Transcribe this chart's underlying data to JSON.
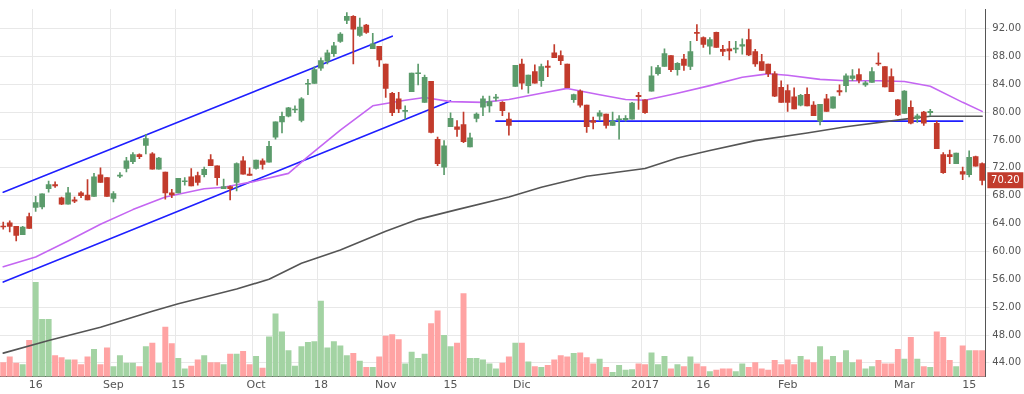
{
  "chart_data": {
    "type": "candlestick",
    "grid": true,
    "legend": false,
    "marker": "none",
    "line_style": "solid",
    "categories": [
      null,
      null,
      null,
      null,
      null,
      "16",
      null,
      null,
      null,
      null,
      null,
      null,
      null,
      null,
      null,
      null,
      null,
      "Sep",
      null,
      null,
      null,
      null,
      null,
      null,
      null,
      null,
      null,
      "15",
      null,
      null,
      null,
      null,
      null,
      null,
      null,
      null,
      null,
      null,
      null,
      "Oct",
      null,
      null,
      null,
      null,
      null,
      null,
      null,
      null,
      null,
      "18",
      null,
      null,
      null,
      null,
      null,
      null,
      null,
      null,
      null,
      "Nov",
      null,
      null,
      null,
      null,
      null,
      null,
      null,
      null,
      null,
      "15",
      null,
      null,
      null,
      null,
      null,
      null,
      null,
      null,
      null,
      null,
      "Dic",
      null,
      null,
      null,
      null,
      null,
      null,
      null,
      null,
      null,
      null,
      null,
      null,
      null,
      null,
      null,
      null,
      null,
      null,
      "2017",
      null,
      null,
      null,
      null,
      null,
      null,
      null,
      null,
      "16",
      null,
      null,
      null,
      null,
      null,
      null,
      null,
      null,
      null,
      null,
      null,
      null,
      "Feb",
      null,
      null,
      null,
      null,
      null,
      null,
      null,
      null,
      null,
      null,
      null,
      null,
      null,
      null,
      null,
      null,
      null,
      "Mar",
      null,
      null,
      null,
      null,
      null,
      null,
      null,
      null,
      null,
      "15",
      null,
      null
    ],
    "ylim": [
      42,
      94.8
    ],
    "yticks": [
      {
        "value": 44,
        "label": "44.00"
      },
      {
        "value": 48,
        "label": "48.00"
      },
      {
        "value": 52,
        "label": "52.00"
      },
      {
        "value": 56,
        "label": "56.00"
      },
      {
        "value": 60,
        "label": "60.00"
      },
      {
        "value": 64,
        "label": "64.00"
      },
      {
        "value": 68,
        "label": "68.00"
      },
      {
        "value": 72,
        "label": "72.00"
      },
      {
        "value": 76,
        "label": "76.00"
      },
      {
        "value": 80,
        "label": "80.00"
      },
      {
        "value": 84,
        "label": "84.00"
      },
      {
        "value": 88,
        "label": "88.00"
      },
      {
        "value": 92,
        "label": "92.00"
      }
    ],
    "ohlc": [
      [
        63.6,
        64.2,
        63.2,
        63.5
      ],
      [
        64.1,
        64.4,
        62.8,
        63.6
      ],
      [
        63.6,
        63.6,
        61.5,
        62.3
      ],
      [
        62.4,
        63.6,
        62.4,
        63.5
      ],
      [
        65.0,
        65.5,
        63.3,
        63.3
      ],
      [
        66.3,
        67.9,
        65.75,
        67.0
      ],
      [
        66.4,
        68.25,
        66.1,
        68.25
      ],
      [
        69.0,
        70.1,
        68.5,
        69.6
      ],
      [
        69.6,
        70.0,
        69.2,
        69.4
      ],
      [
        67.7,
        67.8,
        66.7,
        66.8
      ],
      [
        66.8,
        69.2,
        66.8,
        68.4
      ],
      [
        67.4,
        67.8,
        67.0,
        67.2
      ],
      [
        68.4,
        68.6,
        67.7,
        68.0
      ],
      [
        68.1,
        70.3,
        67.4,
        67.4
      ],
      [
        67.9,
        71.2,
        67.9,
        70.7
      ],
      [
        71.0,
        72.0,
        69.9,
        69.9
      ],
      [
        70.6,
        70.6,
        67.9,
        67.9
      ],
      [
        67.6,
        68.6,
        67.1,
        68.3
      ],
      [
        70.8,
        71.3,
        70.6,
        70.9
      ],
      [
        71.9,
        73.5,
        71.4,
        73.0
      ],
      [
        72.9,
        74.2,
        72.6,
        73.9
      ],
      [
        73.9,
        74.0,
        73.3,
        73.6
      ],
      [
        75.2,
        76.8,
        74.0,
        76.2
      ],
      [
        74.0,
        74.2,
        71.8,
        71.8
      ],
      [
        71.8,
        73.5,
        71.8,
        73.4
      ],
      [
        71.4,
        71.4,
        67.5,
        68.4
      ],
      [
        68.4,
        68.9,
        67.7,
        68.1
      ],
      [
        68.4,
        70.5,
        68.4,
        70.5
      ],
      [
        70.0,
        70.6,
        69.5,
        70.1
      ],
      [
        70.7,
        71.9,
        69.4,
        69.4
      ],
      [
        70.9,
        71.4,
        69.5,
        69.9
      ],
      [
        71.0,
        72.1,
        70.7,
        71.8
      ],
      [
        73.2,
        73.9,
        72.3,
        72.3
      ],
      [
        72.3,
        72.3,
        69.5,
        70.6
      ],
      [
        69.0,
        70.4,
        69.0,
        69.3
      ],
      [
        69.3,
        69.4,
        67.4,
        69.0
      ],
      [
        69.9,
        72.7,
        68.7,
        72.6
      ],
      [
        73.0,
        73.6,
        71.1,
        71.1
      ],
      [
        71.1,
        72.0,
        70.9,
        70.9
      ],
      [
        71.9,
        73.1,
        71.8,
        73.1
      ],
      [
        73.0,
        73.3,
        71.8,
        72.5
      ],
      [
        72.8,
        75.8,
        72.8,
        75.1
      ],
      [
        76.4,
        78.6,
        76.1,
        78.6
      ],
      [
        78.6,
        80.0,
        77.0,
        79.4
      ],
      [
        79.4,
        80.7,
        79.3,
        80.6
      ],
      [
        80.3,
        80.9,
        79.9,
        80.4
      ],
      [
        78.8,
        82.1,
        78.6,
        81.9
      ],
      [
        84.0,
        84.7,
        82.5,
        84.1
      ],
      [
        84.1,
        86.5,
        84.1,
        86.1
      ],
      [
        86.3,
        87.8,
        86.0,
        87.4
      ],
      [
        87.3,
        88.9,
        86.9,
        88.5
      ],
      [
        88.4,
        90.0,
        88.0,
        89.5
      ],
      [
        90.15,
        91.4,
        90.0,
        91.2
      ],
      [
        93.15,
        94.3,
        92.7,
        93.75
      ],
      [
        93.75,
        93.85,
        86.9,
        91.9
      ],
      [
        91.0,
        93.5,
        90.85,
        92.2
      ],
      [
        92.5,
        92.6,
        91.3,
        91.45
      ],
      [
        89.1,
        91.3,
        89.1,
        89.8
      ],
      [
        89.45,
        89.45,
        86.55,
        87.5
      ],
      [
        86.9,
        86.9,
        82.1,
        83.4
      ],
      [
        82.7,
        82.85,
        79.5,
        79.9
      ],
      [
        81.9,
        82.85,
        79.9,
        80.45
      ],
      [
        80.1,
        80.9,
        79.0,
        80.25
      ],
      [
        82.95,
        85.6,
        82.95,
        85.6
      ],
      [
        85.5,
        86.9,
        83.9,
        85.55
      ],
      [
        81.4,
        85.3,
        81.4,
        85.0
      ],
      [
        84.4,
        84.4,
        77.0,
        77.1
      ],
      [
        76.1,
        76.4,
        72.3,
        72.6
      ],
      [
        72.1,
        75.9,
        71.0,
        75.15
      ],
      [
        77.9,
        79.9,
        77.9,
        79.1
      ],
      [
        77.9,
        78.8,
        76.5,
        77.5
      ],
      [
        78.2,
        80.0,
        75.6,
        75.75
      ],
      [
        75.0,
        77.0,
        75.0,
        76.3
      ],
      [
        79.1,
        79.9,
        78.6,
        79.7
      ],
      [
        80.7,
        82.3,
        79.5,
        81.9
      ],
      [
        80.9,
        82.3,
        80.0,
        81.5
      ],
      [
        82.0,
        82.55,
        81.6,
        82.1
      ],
      [
        81.4,
        81.5,
        79.5,
        80.2
      ],
      [
        79.0,
        79.9,
        76.7,
        78.1
      ],
      [
        83.7,
        86.7,
        83.7,
        86.7
      ],
      [
        86.9,
        87.6,
        83.3,
        84.15
      ],
      [
        83.8,
        85.3,
        82.7,
        85.3
      ],
      [
        85.8,
        86.8,
        84.15,
        84.15
      ],
      [
        84.5,
        86.9,
        83.7,
        86.55
      ],
      [
        86.6,
        87.4,
        85.1,
        86.4
      ],
      [
        88.5,
        89.7,
        87.8,
        87.8
      ],
      [
        88.1,
        88.8,
        86.8,
        87.4
      ],
      [
        86.9,
        86.9,
        83.5,
        83.5
      ],
      [
        81.8,
        82.6,
        81.4,
        82.5
      ],
      [
        83.0,
        83.2,
        80.7,
        81.0
      ],
      [
        81.0,
        81.0,
        77.1,
        77.9
      ],
      [
        78.8,
        79.3,
        77.6,
        78.5
      ],
      [
        79.4,
        80.2,
        78.8,
        79.9
      ],
      [
        79.7,
        79.7,
        77.7,
        78.1
      ],
      [
        78.1,
        80.0,
        78.1,
        78.7
      ],
      [
        78.9,
        79.5,
        76.1,
        79.0
      ],
      [
        78.9,
        79.5,
        78.7,
        79.1
      ],
      [
        79.0,
        81.4,
        79.0,
        81.3
      ],
      [
        82.4,
        82.85,
        80.4,
        82.2
      ],
      [
        81.75,
        81.8,
        79.8,
        79.9
      ],
      [
        83.0,
        86.55,
        83.0,
        85.2
      ],
      [
        85.5,
        86.7,
        85.3,
        86.4
      ],
      [
        86.55,
        89.1,
        86.55,
        88.4
      ],
      [
        88.1,
        88.1,
        85.8,
        86.1
      ],
      [
        86.1,
        87.1,
        85.3,
        87.0
      ],
      [
        87.6,
        88.3,
        86.0,
        86.7
      ],
      [
        86.55,
        90.15,
        86.1,
        88.7
      ],
      [
        91.45,
        92.55,
        90.25,
        91.3
      ],
      [
        90.7,
        90.8,
        89.3,
        89.7
      ],
      [
        89.45,
        90.7,
        88.3,
        90.4
      ],
      [
        91.45,
        91.5,
        89.3,
        89.3
      ],
      [
        89.0,
        89.6,
        88.1,
        88.7
      ],
      [
        89.1,
        90.15,
        87.5,
        88.8
      ],
      [
        89.05,
        90.15,
        88.5,
        89.2
      ],
      [
        89.45,
        90.5,
        88.3,
        89.7
      ],
      [
        90.4,
        91.9,
        88.1,
        88.2
      ],
      [
        88.7,
        89.0,
        86.55,
        86.9
      ],
      [
        87.25,
        88.3,
        86.0,
        86.0
      ],
      [
        86.9,
        86.9,
        85.1,
        85.5
      ],
      [
        85.5,
        85.8,
        82.2,
        82.3
      ],
      [
        83.55,
        84.5,
        81.4,
        81.4
      ],
      [
        83.1,
        83.9,
        80.1,
        81.4
      ],
      [
        82.2,
        83.5,
        80.45,
        80.45
      ],
      [
        81.0,
        82.55,
        80.9,
        82.4
      ],
      [
        82.55,
        83.5,
        80.9,
        80.9
      ],
      [
        81.0,
        81.5,
        79.5,
        79.5
      ],
      [
        78.7,
        81.1,
        78.15,
        81.1
      ],
      [
        81.9,
        82.55,
        80.1,
        80.1
      ],
      [
        80.55,
        82.2,
        80.55,
        82.2
      ],
      [
        83.1,
        83.9,
        82.4,
        82.9
      ],
      [
        83.8,
        85.5,
        82.9,
        85.2
      ],
      [
        84.85,
        86.1,
        84.5,
        85.2
      ],
      [
        85.4,
        86.2,
        84.2,
        84.6
      ],
      [
        83.9,
        84.4,
        83.7,
        84.2
      ],
      [
        84.25,
        86.4,
        84.25,
        85.8
      ],
      [
        86.95,
        88.5,
        86.7,
        86.9
      ],
      [
        86.55,
        86.55,
        83.6,
        83.6
      ],
      [
        85.1,
        86.2,
        82.95,
        82.95
      ],
      [
        81.75,
        81.8,
        79.5,
        79.6
      ],
      [
        79.8,
        83.1,
        79.8,
        83.0
      ],
      [
        80.7,
        81.6,
        78.3,
        78.4
      ],
      [
        79.1,
        79.7,
        78.5,
        79.45
      ],
      [
        80.0,
        80.1,
        78.1,
        78.4
      ],
      [
        79.9,
        80.4,
        79.5,
        80.1
      ],
      [
        78.4,
        78.7,
        74.75,
        74.75
      ],
      [
        73.9,
        74.2,
        71.2,
        71.3
      ],
      [
        73.9,
        74.55,
        72.6,
        73.6
      ],
      [
        72.6,
        74.1,
        72.6,
        74.1
      ],
      [
        71.45,
        72.1,
        70.3,
        71.1
      ],
      [
        71.0,
        74.45,
        70.7,
        73.5
      ],
      [
        73.6,
        73.7,
        72.25,
        72.25
      ],
      [
        72.6,
        72.7,
        69.55,
        70.2
      ]
    ],
    "colors": [
      "#c23b2c",
      "#c23b2c",
      "#c23b2c",
      "#5b9b6b",
      "#c23b2c",
      "#5b9b6b",
      "#5b9b6b",
      "#5b9b6b",
      "#c23b2c",
      "#c23b2c",
      "#5b9b6b",
      "#c23b2c",
      "#c23b2c",
      "#c23b2c",
      "#5b9b6b",
      "#c23b2c",
      "#c23b2c",
      "#5b9b6b",
      "#5b9b6b",
      "#5b9b6b",
      "#5b9b6b",
      "#c23b2c",
      "#5b9b6b",
      "#c23b2c",
      "#5b9b6b",
      "#c23b2c",
      "#c23b2c",
      "#5b9b6b",
      "#5b9b6b",
      "#c23b2c",
      "#c23b2c",
      "#5b9b6b",
      "#c23b2c",
      "#c23b2c",
      "#5b9b6b",
      "#c23b2c",
      "#5b9b6b",
      "#c23b2c",
      "#c23b2c",
      "#5b9b6b",
      "#c23b2c",
      "#5b9b6b",
      "#5b9b6b",
      "#5b9b6b",
      "#5b9b6b",
      "#5b9b6b",
      "#5b9b6b",
      "#5b9b6b",
      "#5b9b6b",
      "#5b9b6b",
      "#5b9b6b",
      "#5b9b6b",
      "#5b9b6b",
      "#5b9b6b",
      "#c23b2c",
      "#5b9b6b",
      "#c23b2c",
      "#5b9b6b",
      "#c23b2c",
      "#c23b2c",
      "#c23b2c",
      "#c23b2c",
      "#5b9b6b",
      "#5b9b6b",
      "#5b9b6b",
      "#5b9b6b",
      "#c23b2c",
      "#c23b2c",
      "#5b9b6b",
      "#5b9b6b",
      "#c23b2c",
      "#c23b2c",
      "#5b9b6b",
      "#5b9b6b",
      "#5b9b6b",
      "#5b9b6b",
      "#5b9b6b",
      "#c23b2c",
      "#c23b2c",
      "#5b9b6b",
      "#c23b2c",
      "#5b9b6b",
      "#c23b2c",
      "#5b9b6b",
      "#c23b2c",
      "#c23b2c",
      "#c23b2c",
      "#c23b2c",
      "#5b9b6b",
      "#c23b2c",
      "#c23b2c",
      "#c23b2c",
      "#5b9b6b",
      "#c23b2c",
      "#5b9b6b",
      "#5b9b6b",
      "#5b9b6b",
      "#5b9b6b",
      "#c23b2c",
      "#c23b2c",
      "#5b9b6b",
      "#5b9b6b",
      "#5b9b6b",
      "#c23b2c",
      "#5b9b6b",
      "#c23b2c",
      "#5b9b6b",
      "#c23b2c",
      "#c23b2c",
      "#5b9b6b",
      "#c23b2c",
      "#c23b2c",
      "#c23b2c",
      "#5b9b6b",
      "#5b9b6b",
      "#c23b2c",
      "#c23b2c",
      "#c23b2c",
      "#c23b2c",
      "#c23b2c",
      "#c23b2c",
      "#c23b2c",
      "#c23b2c",
      "#5b9b6b",
      "#c23b2c",
      "#c23b2c",
      "#5b9b6b",
      "#c23b2c",
      "#5b9b6b",
      "#c23b2c",
      "#5b9b6b",
      "#5b9b6b",
      "#c23b2c",
      "#5b9b6b",
      "#5b9b6b",
      "#c23b2c",
      "#c23b2c",
      "#c23b2c",
      "#c23b2c",
      "#5b9b6b",
      "#c23b2c",
      "#5b9b6b",
      "#c23b2c",
      "#5b9b6b",
      "#c23b2c",
      "#c23b2c",
      "#c23b2c",
      "#5b9b6b",
      "#c23b2c",
      "#5b9b6b",
      "#c23b2c",
      "#c23b2c"
    ],
    "series": [
      {
        "type": "bar",
        "colors": [
          "#ffa3a3",
          "#ffa3a3",
          "#ffa3a3",
          "#a3d3a3",
          "#ffa3a3",
          "#a3d3a3",
          "#a3d3a3",
          "#a3d3a3",
          "#ffa3a3",
          "#ffa3a3",
          "#a3d3a3",
          "#ffa3a3",
          "#ffa3a3",
          "#ffa3a3",
          "#a3d3a3",
          "#ffa3a3",
          "#ffa3a3",
          "#a3d3a3",
          "#a3d3a3",
          "#a3d3a3",
          "#a3d3a3",
          "#ffa3a3",
          "#a3d3a3",
          "#ffa3a3",
          "#a3d3a3",
          "#ffa3a3",
          "#ffa3a3",
          "#a3d3a3",
          "#a3d3a3",
          "#ffa3a3",
          "#ffa3a3",
          "#a3d3a3",
          "#ffa3a3",
          "#ffa3a3",
          "#a3d3a3",
          "#ffa3a3",
          "#a3d3a3",
          "#ffa3a3",
          "#ffa3a3",
          "#a3d3a3",
          "#ffa3a3",
          "#a3d3a3",
          "#a3d3a3",
          "#a3d3a3",
          "#a3d3a3",
          "#a3d3a3",
          "#a3d3a3",
          "#a3d3a3",
          "#a3d3a3",
          "#a3d3a3",
          "#a3d3a3",
          "#a3d3a3",
          "#a3d3a3",
          "#a3d3a3",
          "#ffa3a3",
          "#a3d3a3",
          "#ffa3a3",
          "#a3d3a3",
          "#ffa3a3",
          "#ffa3a3",
          "#ffa3a3",
          "#ffa3a3",
          "#a3d3a3",
          "#a3d3a3",
          "#a3d3a3",
          "#a3d3a3",
          "#ffa3a3",
          "#ffa3a3",
          "#a3d3a3",
          "#a3d3a3",
          "#ffa3a3",
          "#ffa3a3",
          "#a3d3a3",
          "#a3d3a3",
          "#a3d3a3",
          "#a3d3a3",
          "#a3d3a3",
          "#ffa3a3",
          "#ffa3a3",
          "#a3d3a3",
          "#ffa3a3",
          "#a3d3a3",
          "#ffa3a3",
          "#a3d3a3",
          "#ffa3a3",
          "#ffa3a3",
          "#ffa3a3",
          "#ffa3a3",
          "#a3d3a3",
          "#ffa3a3",
          "#ffa3a3",
          "#ffa3a3",
          "#a3d3a3",
          "#ffa3a3",
          "#a3d3a3",
          "#a3d3a3",
          "#a3d3a3",
          "#a3d3a3",
          "#ffa3a3",
          "#ffa3a3",
          "#a3d3a3",
          "#a3d3a3",
          "#a3d3a3",
          "#ffa3a3",
          "#a3d3a3",
          "#ffa3a3",
          "#a3d3a3",
          "#ffa3a3",
          "#ffa3a3",
          "#a3d3a3",
          "#ffa3a3",
          "#ffa3a3",
          "#ffa3a3",
          "#a3d3a3",
          "#a3d3a3",
          "#ffa3a3",
          "#ffa3a3",
          "#ffa3a3",
          "#ffa3a3",
          "#ffa3a3",
          "#ffa3a3",
          "#ffa3a3",
          "#ffa3a3",
          "#a3d3a3",
          "#ffa3a3",
          "#ffa3a3",
          "#a3d3a3",
          "#ffa3a3",
          "#a3d3a3",
          "#ffa3a3",
          "#a3d3a3",
          "#a3d3a3",
          "#ffa3a3",
          "#a3d3a3",
          "#a3d3a3",
          "#ffa3a3",
          "#ffa3a3",
          "#ffa3a3",
          "#ffa3a3",
          "#a3d3a3",
          "#ffa3a3",
          "#a3d3a3",
          "#ffa3a3",
          "#a3d3a3",
          "#ffa3a3",
          "#ffa3a3",
          "#ffa3a3",
          "#a3d3a3",
          "#ffa3a3",
          "#a3d3a3",
          "#ffa3a3",
          "#ffa3a3"
        ],
        "values": [
          44.1,
          44.9,
          44.0,
          43.8,
          47.3,
          55.6,
          50.3,
          50.3,
          45.1,
          44.8,
          44.5,
          44.5,
          43.8,
          44.9,
          46.0,
          43.8,
          46.2,
          43.5,
          45.1,
          44.0,
          44.0,
          43.5,
          46.4,
          46.9,
          44.0,
          49.2,
          46.8,
          44.7,
          43.2,
          43.6,
          44.5,
          45.1,
          44.1,
          44.1,
          43.8,
          45.3,
          45.3,
          45.7,
          43.8,
          45.0,
          43.3,
          47.8,
          51.1,
          48.5,
          45.8,
          43.6,
          46.4,
          47.0,
          47.1,
          52.9,
          46.2,
          47.1,
          46.5,
          45.1,
          45.4,
          44.3,
          43.4,
          43.4,
          44.9,
          47.9,
          48.1,
          47.4,
          43.9,
          45.6,
          44.7,
          45.3,
          49.7,
          51.5,
          48.0,
          46.4,
          46.9,
          54.0,
          44.7,
          44.7,
          44.5,
          43.9,
          43.2,
          44.0,
          44.9,
          46.9,
          46.9,
          44.2,
          43.5,
          43.4,
          43.7,
          44.5,
          45.1,
          44.9,
          45.4,
          45.5,
          44.8,
          43.9,
          44.6,
          43.4,
          42.7,
          43.7,
          43.0,
          43.1,
          43.9,
          43.8,
          45.5,
          43.8,
          45.0,
          43.2,
          43.8,
          43.5,
          44.9,
          43.9,
          43.5,
          42.8,
          43.0,
          43.2,
          43.2,
          42.8,
          43.9,
          43.4,
          44.1,
          43.2,
          43.0,
          44.4,
          43.8,
          44.5,
          43.8,
          45.0,
          44.5,
          44.1,
          46.4,
          44.5,
          45.0,
          44.1,
          45.8,
          44.1,
          44.5,
          43.2,
          43.5,
          44.4,
          43.9,
          43.9,
          46.0,
          44.6,
          47.7,
          44.6,
          43.5,
          43.4,
          48.5,
          47.7,
          44.4,
          43.5,
          46.5,
          45.8,
          45.8,
          45.8
        ]
      },
      {
        "type": "line",
        "color": "#c466f2",
        "values": [
          57.8,
          null,
          null,
          null,
          null,
          59.2,
          null,
          null,
          null,
          null,
          61.5,
          null,
          null,
          null,
          null,
          63.9,
          null,
          null,
          null,
          null,
          66.0,
          null,
          null,
          null,
          null,
          67.8,
          null,
          null,
          null,
          null,
          null,
          69.0,
          null,
          null,
          69.2,
          null,
          null,
          null,
          null,
          70.1,
          null,
          null,
          null,
          null,
          71.2,
          null,
          null,
          73.6,
          null,
          null,
          null,
          null,
          77.4,
          null,
          null,
          null,
          null,
          80.9,
          null,
          null,
          null,
          null,
          81.7,
          null,
          null,
          82.1,
          null,
          null,
          null,
          81.5,
          null,
          null,
          null,
          null,
          81.4,
          null,
          null,
          null,
          81.8,
          null,
          null,
          null,
          null,
          82.7,
          null,
          null,
          null,
          83.4,
          null,
          null,
          null,
          null,
          82.5,
          null,
          null,
          null,
          81.8,
          null,
          null,
          81.7,
          null,
          null,
          null,
          null,
          82.7,
          null,
          null,
          null,
          null,
          83.8,
          null,
          null,
          null,
          null,
          85.0,
          null,
          null,
          null,
          85.5,
          null,
          null,
          85.3,
          null,
          null,
          null,
          null,
          84.7,
          null,
          null,
          null,
          84.5,
          null,
          null,
          null,
          null,
          84.5,
          null,
          null,
          null,
          84.4,
          null,
          null,
          null,
          83.7,
          null,
          null,
          null,
          null,
          81.4,
          null,
          null,
          80.1
        ]
      },
      {
        "type": "line",
        "color": "#555555",
        "values": [
          45.4,
          null,
          null,
          null,
          null,
          null,
          null,
          47.2,
          null,
          null,
          null,
          null,
          null,
          null,
          null,
          49.1,
          null,
          null,
          null,
          null,
          null,
          null,
          null,
          51.4,
          null,
          null,
          null,
          52.5,
          null,
          null,
          null,
          null,
          null,
          null,
          null,
          null,
          54.6,
          null,
          null,
          null,
          null,
          56.0,
          null,
          null,
          null,
          null,
          58.3,
          null,
          null,
          null,
          null,
          null,
          60.2,
          null,
          null,
          null,
          null,
          null,
          null,
          62.9,
          null,
          null,
          null,
          null,
          64.6,
          null,
          null,
          null,
          null,
          null,
          66.0,
          null,
          null,
          null,
          null,
          null,
          null,
          null,
          67.8,
          null,
          null,
          null,
          null,
          69.2,
          null,
          null,
          null,
          null,
          null,
          null,
          70.8,
          null,
          null,
          null,
          null,
          null,
          null,
          null,
          null,
          71.9,
          null,
          null,
          null,
          null,
          73.4,
          null,
          null,
          null,
          null,
          74.5,
          null,
          null,
          null,
          null,
          null,
          null,
          75.9,
          null,
          null,
          null,
          null,
          null,
          null,
          null,
          77.0,
          null,
          null,
          null,
          null,
          null,
          77.9,
          null,
          null,
          null,
          null,
          null,
          null,
          null,
          null,
          null,
          79.1,
          null,
          null,
          79.4,
          null,
          null,
          null,
          null,
          null,
          null,
          null,
          79.4
        ]
      },
      {
        "type": "line",
        "color": "#1f1fff",
        "values": [
          68.5,
          null,
          null,
          null,
          null,
          null,
          null,
          null,
          null,
          null,
          null,
          null,
          null,
          null,
          null,
          null,
          null,
          null,
          null,
          null,
          null,
          null,
          null,
          null,
          null,
          null,
          null,
          null,
          null,
          null,
          null,
          null,
          null,
          null,
          null,
          null,
          null,
          null,
          null,
          null,
          null,
          null,
          null,
          null,
          null,
          null,
          null,
          null,
          null,
          null,
          null,
          null,
          null,
          null,
          null,
          null,
          null,
          null,
          null,
          null,
          90.9,
          null,
          null,
          null,
          null,
          null,
          null,
          null,
          null,
          null,
          null,
          null,
          null,
          null,
          null,
          null,
          null,
          null,
          null,
          null,
          null,
          null,
          null,
          null,
          null,
          null,
          null,
          null,
          null,
          null,
          null,
          null,
          null,
          null,
          null,
          null,
          null,
          null,
          null,
          null,
          null,
          null,
          null,
          null,
          null,
          null,
          null,
          null,
          null,
          null,
          null,
          null,
          null,
          null,
          null,
          null,
          null,
          null,
          null,
          null,
          null,
          null,
          null,
          null,
          null,
          null,
          null,
          null,
          null,
          null,
          null,
          null,
          null,
          null,
          null,
          null,
          null,
          null,
          null,
          null,
          null,
          null,
          null,
          null,
          null,
          null,
          null,
          null,
          null,
          null,
          null,
          null
        ]
      },
      {
        "type": "line",
        "color": "#1f1fff",
        "values": [
          55.6,
          null,
          null,
          null,
          null,
          null,
          null,
          null,
          null,
          null,
          null,
          null,
          null,
          null,
          null,
          null,
          null,
          null,
          null,
          null,
          null,
          null,
          null,
          null,
          null,
          null,
          null,
          null,
          null,
          null,
          null,
          null,
          null,
          null,
          null,
          null,
          null,
          null,
          null,
          null,
          null,
          null,
          null,
          null,
          null,
          null,
          null,
          null,
          null,
          null,
          null,
          null,
          null,
          null,
          null,
          null,
          null,
          null,
          null,
          null,
          null,
          null,
          null,
          null,
          null,
          null,
          null,
          null,
          null,
          81.6,
          null,
          null,
          null,
          null,
          null,
          null,
          null,
          null,
          null,
          null,
          null,
          null,
          null,
          null,
          null,
          null,
          null,
          null,
          null,
          null,
          null,
          null,
          null,
          null,
          null,
          null,
          null,
          null,
          null,
          null,
          null,
          null,
          null,
          null,
          null,
          null,
          null,
          null,
          null,
          null,
          null,
          null,
          null,
          null,
          null,
          null,
          null,
          null,
          null,
          null,
          null,
          null,
          null,
          null,
          null,
          null,
          null,
          null,
          null,
          null,
          null,
          null,
          null,
          null,
          null,
          null,
          null,
          null,
          null,
          null,
          null,
          null,
          null,
          null,
          null,
          null,
          null,
          null,
          null,
          null,
          null,
          null
        ]
      },
      {
        "type": "line",
        "color": "#1f1fff",
        "values": [
          null,
          null,
          null,
          null,
          null,
          null,
          null,
          null,
          null,
          null,
          null,
          null,
          null,
          null,
          null,
          null,
          null,
          null,
          null,
          null,
          null,
          null,
          null,
          null,
          null,
          null,
          null,
          null,
          null,
          null,
          null,
          null,
          null,
          null,
          null,
          null,
          null,
          null,
          null,
          null,
          null,
          null,
          null,
          null,
          null,
          null,
          null,
          null,
          null,
          null,
          null,
          null,
          null,
          null,
          null,
          null,
          null,
          null,
          null,
          null,
          null,
          null,
          null,
          null,
          null,
          null,
          null,
          null,
          null,
          null,
          null,
          null,
          null,
          null,
          null,
          null,
          78.7,
          null,
          null,
          null,
          null,
          null,
          null,
          null,
          null,
          null,
          null,
          null,
          null,
          null,
          null,
          null,
          null,
          null,
          null,
          null,
          null,
          null,
          null,
          null,
          null,
          null,
          null,
          null,
          null,
          null,
          null,
          null,
          null,
          null,
          null,
          null,
          null,
          null,
          null,
          null,
          null,
          null,
          null,
          null,
          null,
          null,
          null,
          null,
          null,
          null,
          null,
          null,
          null,
          null,
          null,
          null,
          null,
          null,
          null,
          null,
          null,
          null,
          null,
          null,
          null,
          null,
          null,
          null,
          null,
          null,
          null,
          null,
          78.7,
          null,
          null,
          null
        ]
      }
    ],
    "annotations": [
      {
        "text": "70.20",
        "y": 70.2
      }
    ]
  }
}
